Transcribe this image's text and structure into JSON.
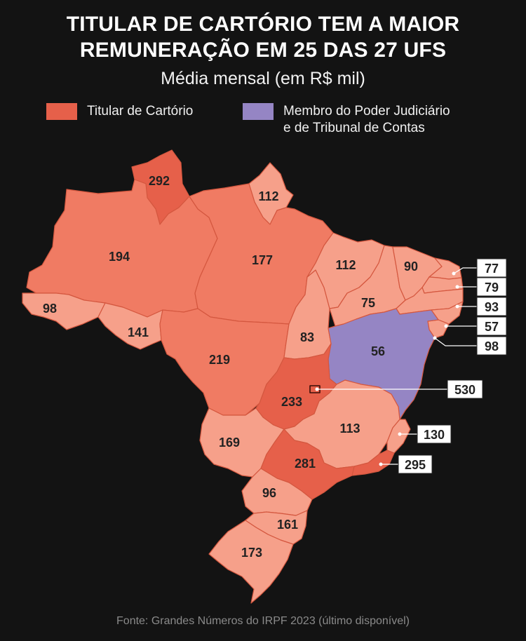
{
  "title": {
    "line1": "TITULAR DE CARTÓRIO TEM A MAIOR",
    "line2": "REMUNERAÇÃO EM 25 DAS 27 UFS"
  },
  "subtitle": "Média mensal (em R$ mil)",
  "legend": {
    "cartorio": {
      "label": "Titular de Cartório",
      "color": "#e6604a"
    },
    "judiciario": {
      "line1": "Membro do Poder Judiciário",
      "line2": "e de Tribunal de Contas",
      "color": "#9585c4"
    }
  },
  "colors": {
    "background": "#131313",
    "scale_high": "#e6604a",
    "scale_mid": "#f07b63",
    "scale_low": "#f6a08a",
    "judiciario": "#9585c4",
    "border": "#d95a46"
  },
  "regions": [
    {
      "name": "RR",
      "value": "292",
      "winner": "cartorio"
    },
    {
      "name": "AP",
      "value": "112",
      "winner": "cartorio"
    },
    {
      "name": "AM",
      "value": "194",
      "winner": "cartorio"
    },
    {
      "name": "PA",
      "value": "177",
      "winner": "cartorio"
    },
    {
      "name": "AC",
      "value": "98",
      "winner": "cartorio"
    },
    {
      "name": "RO",
      "value": "141",
      "winner": "cartorio"
    },
    {
      "name": "MT",
      "value": "219",
      "winner": "cartorio"
    },
    {
      "name": "TO",
      "value": "83",
      "winner": "cartorio"
    },
    {
      "name": "MA",
      "value": "112",
      "winner": "cartorio"
    },
    {
      "name": "PI",
      "value": "75",
      "winner": "cartorio"
    },
    {
      "name": "CE",
      "value": "90",
      "winner": "cartorio"
    },
    {
      "name": "RN",
      "value": "77",
      "winner": "cartorio"
    },
    {
      "name": "PB",
      "value": "79",
      "winner": "cartorio"
    },
    {
      "name": "PE",
      "value": "93",
      "winner": "cartorio"
    },
    {
      "name": "AL",
      "value": "57",
      "winner": "cartorio"
    },
    {
      "name": "SE",
      "value": "98",
      "winner": "cartorio"
    },
    {
      "name": "BA",
      "value": "56",
      "winner": "judiciario"
    },
    {
      "name": "GO",
      "value": "233",
      "winner": "cartorio"
    },
    {
      "name": "DF",
      "value": "530",
      "winner": "cartorio"
    },
    {
      "name": "MG",
      "value": "113",
      "winner": "cartorio"
    },
    {
      "name": "ES",
      "value": "130",
      "winner": "judiciario"
    },
    {
      "name": "RJ",
      "value": "295",
      "winner": "cartorio"
    },
    {
      "name": "MS",
      "value": "169",
      "winner": "cartorio"
    },
    {
      "name": "SP",
      "value": "281",
      "winner": "cartorio"
    },
    {
      "name": "PR",
      "value": "96",
      "winner": "cartorio"
    },
    {
      "name": "SC",
      "value": "161",
      "winner": "cartorio"
    },
    {
      "name": "RS",
      "value": "173",
      "winner": "cartorio"
    }
  ],
  "source": "Fonte: Grandes Números do IRPF 2023 (último disponível)"
}
